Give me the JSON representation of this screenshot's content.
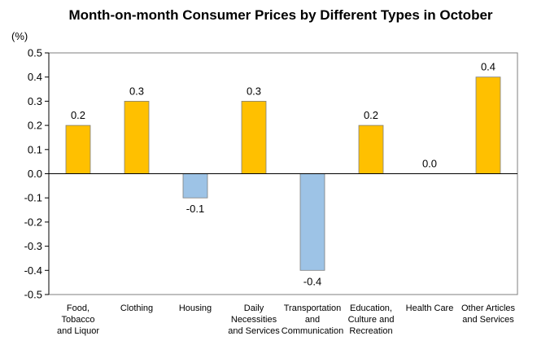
{
  "chart_data": {
    "type": "bar",
    "title": "Month-on-month Consumer Prices by Different Types in October",
    "unit_label": "(%)",
    "xlabel": "",
    "ylabel": "",
    "ylim": [
      -0.5,
      0.5
    ],
    "yticks": [
      "0.5",
      "0.4",
      "0.3",
      "0.2",
      "0.1",
      "0.0",
      "-0.1",
      "-0.2",
      "-0.3",
      "-0.4",
      "-0.5"
    ],
    "ytick_values": [
      0.5,
      0.4,
      0.3,
      0.2,
      0.1,
      0.0,
      -0.1,
      -0.2,
      -0.3,
      -0.4,
      -0.5
    ],
    "categories": [
      [
        "Food,",
        "Tobacco",
        "and Liquor"
      ],
      [
        "Clothing"
      ],
      [
        "Housing"
      ],
      [
        "Daily",
        "Necessities",
        "and Services"
      ],
      [
        "Transportation",
        "and",
        "Communication"
      ],
      [
        "Education,",
        "Culture and",
        "Recreation"
      ],
      [
        "Health Care"
      ],
      [
        "Other Articles",
        "and Services"
      ]
    ],
    "values": [
      0.2,
      0.3,
      -0.1,
      0.3,
      -0.4,
      0.2,
      0.0,
      0.4
    ],
    "data_labels": [
      "0.2",
      "0.3",
      "-0.1",
      "0.3",
      "-0.4",
      "0.2",
      "0.0",
      "0.4"
    ],
    "grid": false,
    "legend": "none",
    "colors": {
      "positive": "#FFC000",
      "negative": "#9DC3E6",
      "bar_stroke": "#7F7F7F",
      "axis": "#000000"
    }
  }
}
